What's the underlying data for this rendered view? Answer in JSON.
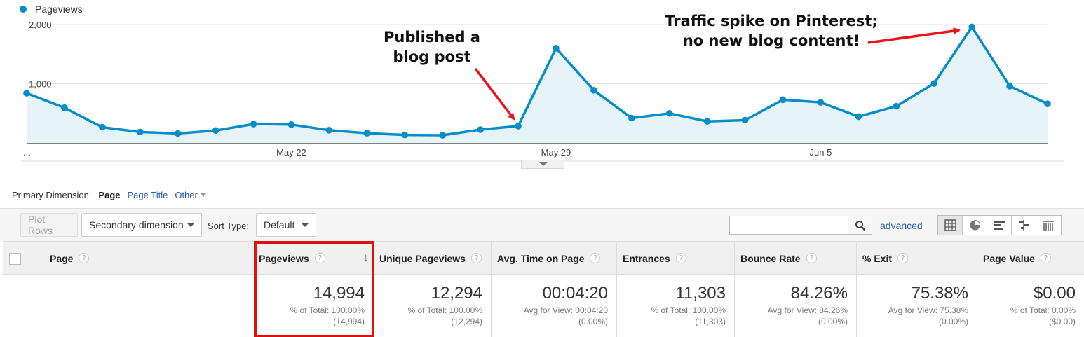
{
  "chart": {
    "legend": "Pageviews",
    "series_color": "#058dc7",
    "y_tick_labels": [
      "2,000",
      "1,000"
    ],
    "x_tick_labels": [
      "...",
      "May 22",
      "May 29",
      "Jun 5"
    ],
    "annotations": [
      {
        "lines": [
          "Published a",
          "blog post"
        ]
      },
      {
        "lines": [
          "Traffic spike on Pinterest;",
          "no new blog content!"
        ]
      }
    ],
    "arrow_color": "#e8141a"
  },
  "chart_data": {
    "type": "area",
    "series": [
      {
        "name": "Pageviews",
        "values": [
          840,
          595,
          265,
          185,
          160,
          210,
          320,
          310,
          215,
          165,
          135,
          130,
          225,
          285,
          1600,
          890,
          420,
          500,
          365,
          385,
          730,
          685,
          445,
          620,
          1005,
          1960,
          960,
          660
        ]
      }
    ],
    "ylim": [
      0,
      2000
    ],
    "y_ticks": [
      1000,
      2000
    ],
    "grid": true
  },
  "primary_dimension": {
    "label": "Primary Dimension:",
    "active": "Page",
    "options": [
      "Page Title",
      "Other"
    ]
  },
  "toolbar": {
    "plot_rows": "Plot Rows",
    "secondary_dimension": "Secondary dimension",
    "sort_type_label": "Sort Type:",
    "sort_type_value": "Default",
    "search_value": "",
    "advanced": "advanced",
    "view_icons": [
      "table-view-icon",
      "pie-view-icon",
      "bar-view-icon",
      "comparison-view-icon",
      "pivot-view-icon"
    ]
  },
  "table": {
    "headers": [
      "Page",
      "Pageviews",
      "Unique Pageviews",
      "Avg. Time on Page",
      "Entrances",
      "Bounce Rate",
      "% Exit",
      "Page Value"
    ],
    "help_glyph": "?",
    "sort_glyph": "↓",
    "totals": [
      {
        "value": "14,994",
        "sub1": "% of Total: 100.00%",
        "sub2": "(14,994)"
      },
      {
        "value": "12,294",
        "sub1": "% of Total: 100.00%",
        "sub2": "(12,294)"
      },
      {
        "value": "00:04:20",
        "sub1": "Avg for View: 00:04:20",
        "sub2": "(0.00%)"
      },
      {
        "value": "11,303",
        "sub1": "% of Total: 100.00%",
        "sub2": "(11,303)"
      },
      {
        "value": "84.26%",
        "sub1": "Avg for View: 84.26%",
        "sub2": "(0.00%)"
      },
      {
        "value": "75.38%",
        "sub1": "Avg for View: 75.38%",
        "sub2": "(0.00%)"
      },
      {
        "value": "$0.00",
        "sub1": "% of Total: 0.00%",
        "sub2": "($0.00)"
      }
    ],
    "highlight_color": "#e01010"
  }
}
